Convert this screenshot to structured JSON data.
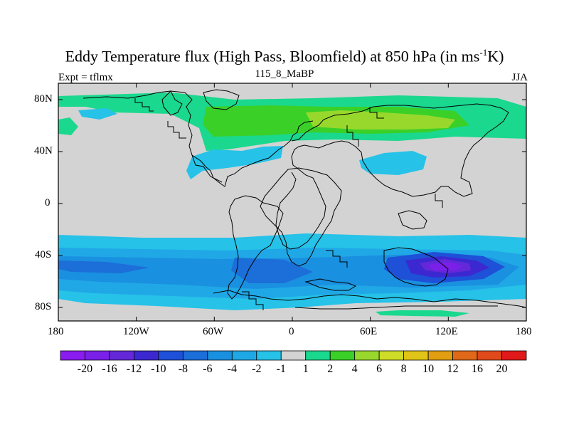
{
  "title": {
    "main_prefix": "Eddy Temperature flux (High Pass, Bloomfield) at 850 hPa (in ms",
    "superscript": "-1",
    "main_suffix": "K)",
    "left": "Expt = tflmx",
    "center": "115_8_MaBP",
    "right": "JJA"
  },
  "map": {
    "projection": "cylindrical-equidistant",
    "lon_range": [
      -180,
      180
    ],
    "lat_range": [
      -90,
      90
    ],
    "x_tick_labels": [
      "180",
      "120W",
      "60W",
      "0",
      "60E",
      "120E",
      "180"
    ],
    "y_tick_labels": [
      "80N",
      "40N",
      "0",
      "40S",
      "80S"
    ],
    "land_color": "#d3d3d3",
    "coastline_color": "#000000"
  },
  "colorbar": {
    "labels": [
      "-20",
      "-16",
      "-12",
      "-10",
      "-8",
      "-6",
      "-4",
      "-2",
      "-1",
      "1",
      "2",
      "4",
      "6",
      "8",
      "10",
      "12",
      "16",
      "20"
    ],
    "colors": [
      "#8a1cf0",
      "#7a20e8",
      "#6428d8",
      "#3c28d0",
      "#1e50d8",
      "#1c6ed8",
      "#1a90e0",
      "#20a8e6",
      "#26c2e8",
      "#d3d3d3",
      "#1ad88e",
      "#3ad028",
      "#98d82c",
      "#cedc28",
      "#e0c418",
      "#e09e10",
      "#e06818",
      "#e04a1a",
      "#e01a1a"
    ]
  }
}
